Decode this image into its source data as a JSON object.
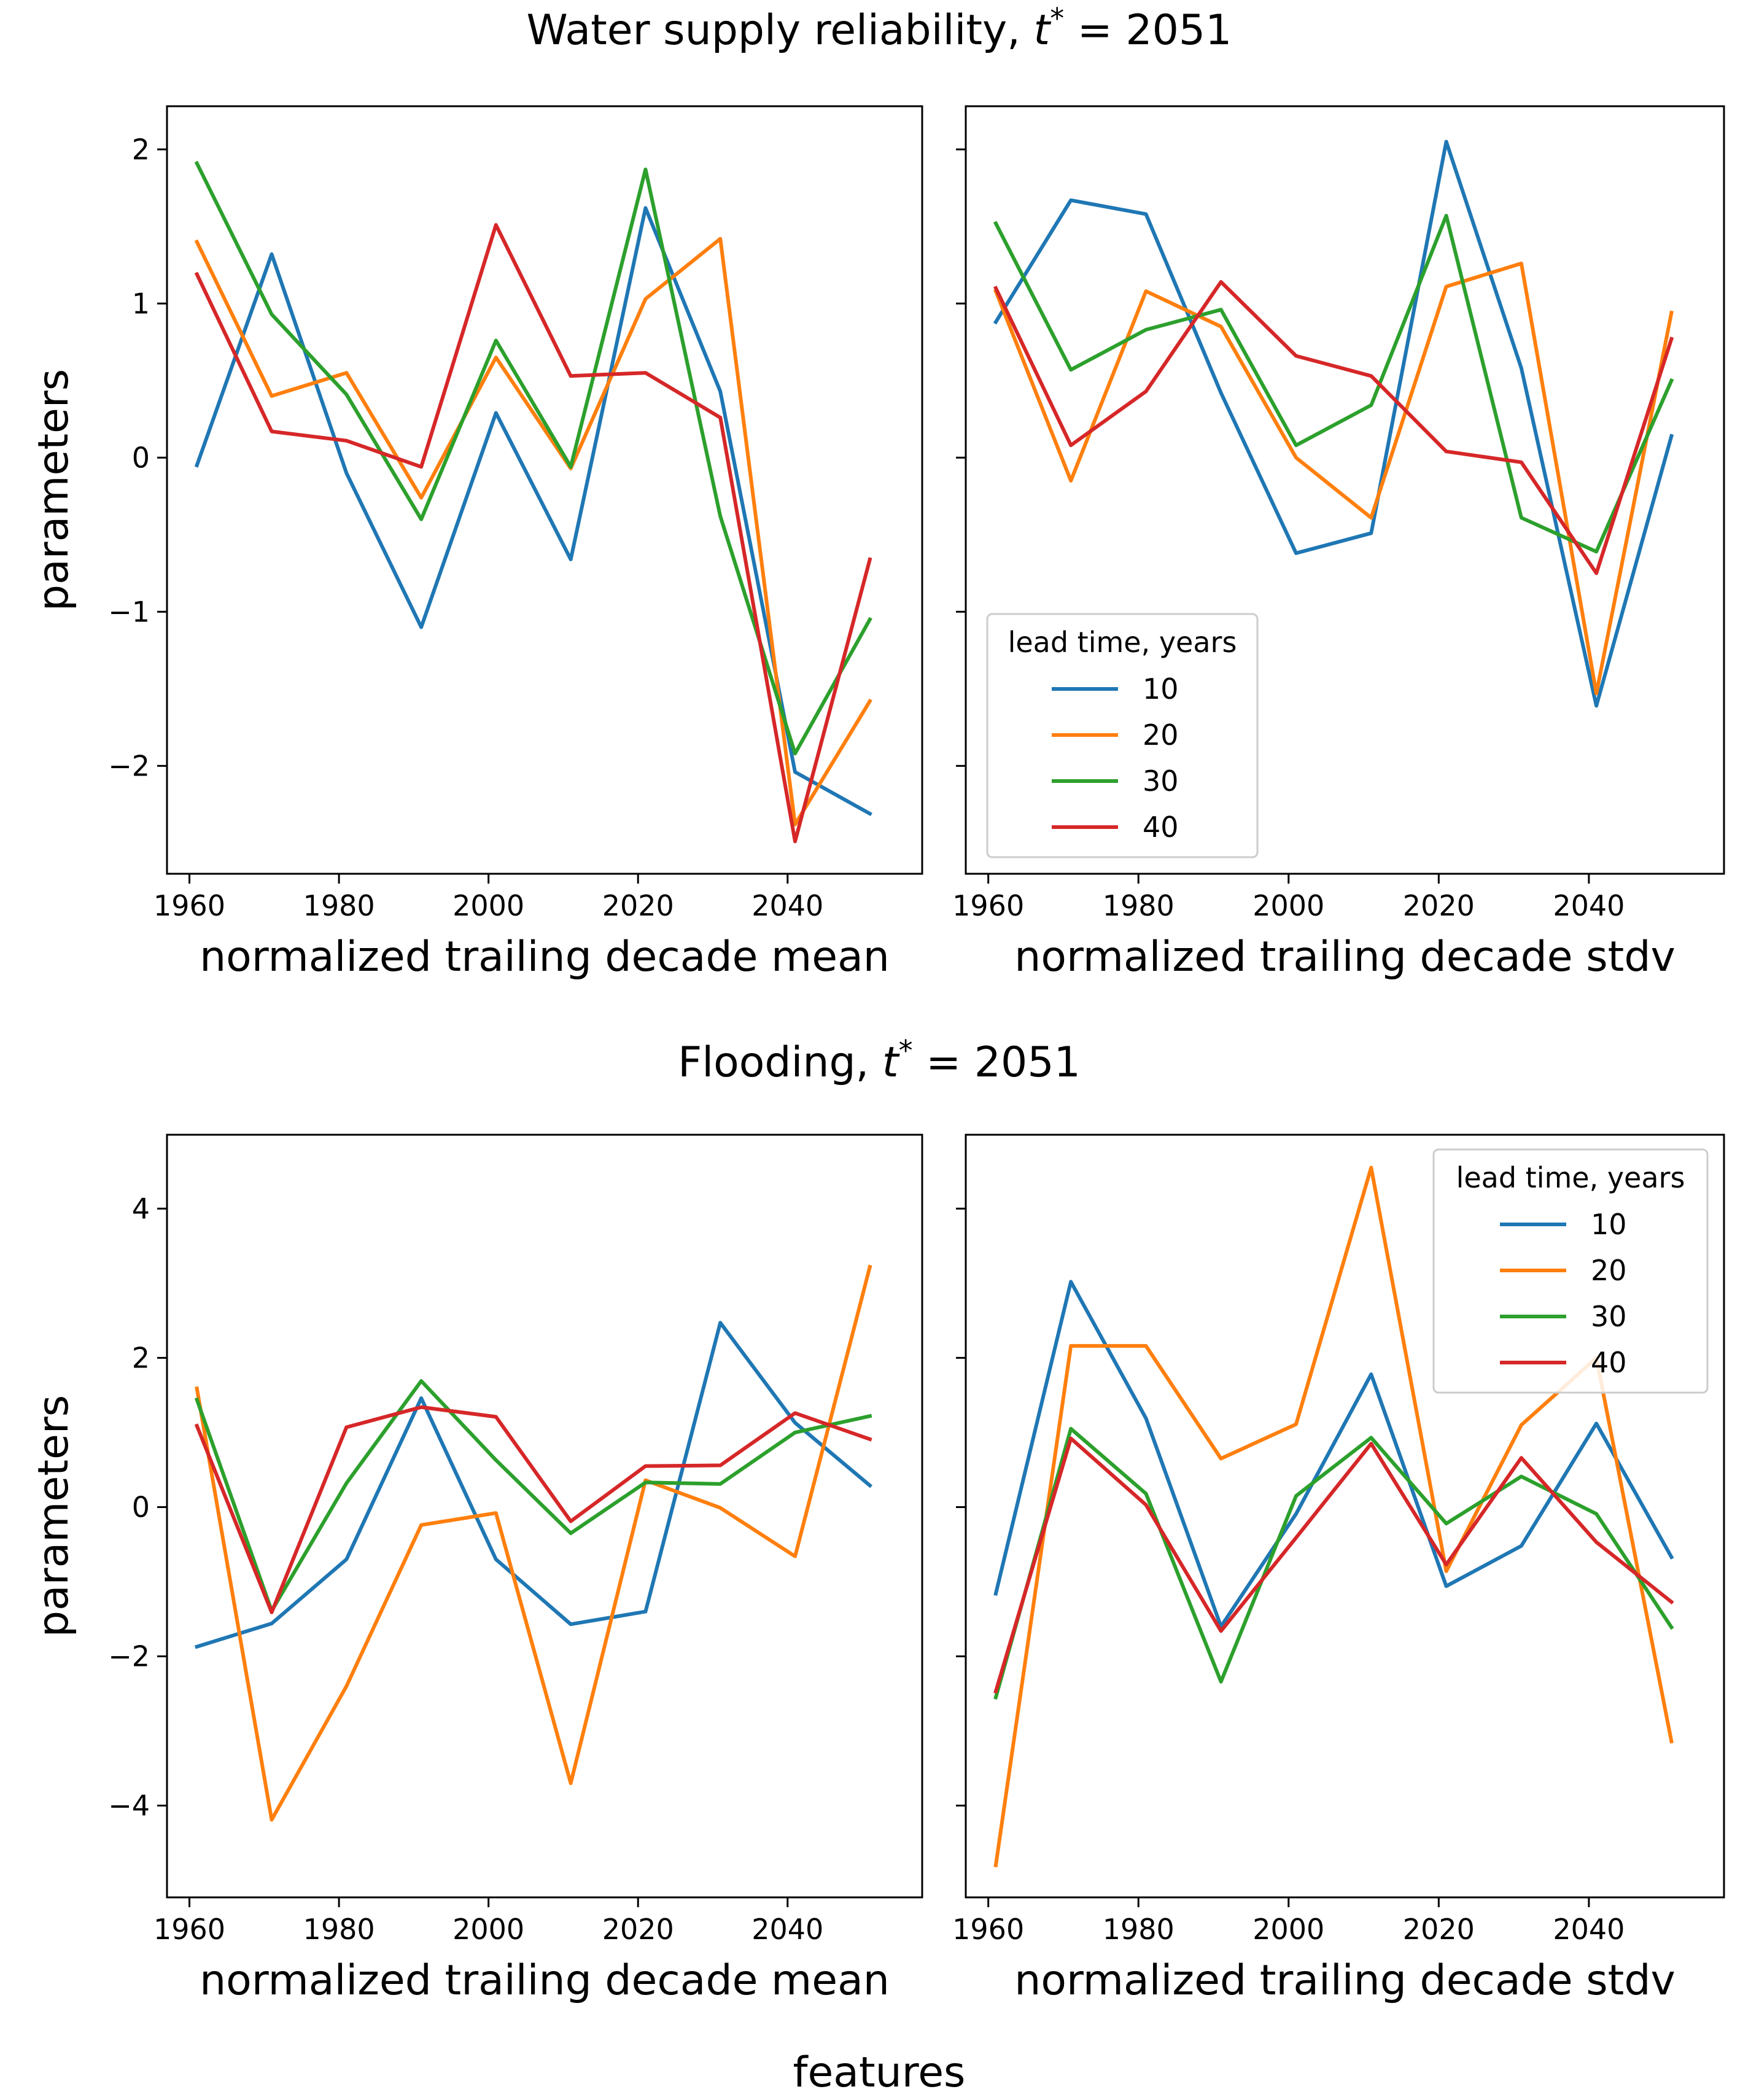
{
  "figure": {
    "suptitles": [
      "Water supply reliability, ",
      "Flooding, "
    ],
    "tstar_label": "t",
    "tstar_sup": "*",
    "tstar_value": " = 2051",
    "xlabel_bottom": "features"
  },
  "legend": {
    "title": "lead time, years",
    "entries": [
      "10",
      "20",
      "30",
      "40"
    ]
  },
  "chart_data": [
    {
      "type": "line",
      "panel": "water-mean",
      "xlabel": "normalized trailing decade mean",
      "ylabel": "parameters",
      "x": [
        1961,
        1971,
        1981,
        1991,
        2001,
        2011,
        2021,
        2031,
        2041,
        2051
      ],
      "xlim": [
        1957,
        2058
      ],
      "ylim": [
        -2.7,
        2.28
      ],
      "xticks": [
        1960,
        1980,
        2000,
        2020,
        2040
      ],
      "yticks": [
        -2,
        -1,
        0,
        1,
        2
      ],
      "ytick_labels": [
        "−2",
        "−1",
        "0",
        "1",
        "2"
      ],
      "series": [
        {
          "name": "10",
          "color": "#1f77b4",
          "values": [
            -0.05,
            1.32,
            -0.1,
            -1.1,
            0.29,
            -0.66,
            1.62,
            0.43,
            -2.04,
            -2.31
          ]
        },
        {
          "name": "20",
          "color": "#ff7f0e",
          "values": [
            1.4,
            0.4,
            0.55,
            -0.26,
            0.65,
            -0.07,
            1.03,
            1.42,
            -2.38,
            -1.58
          ]
        },
        {
          "name": "30",
          "color": "#2ca02c",
          "values": [
            1.91,
            0.93,
            0.41,
            -0.4,
            0.76,
            -0.06,
            1.87,
            -0.38,
            -1.92,
            -1.05
          ]
        },
        {
          "name": "40",
          "color": "#d62728",
          "values": [
            1.19,
            0.17,
            0.11,
            -0.06,
            1.51,
            0.53,
            0.55,
            0.26,
            -2.49,
            -0.66
          ]
        }
      ],
      "legend": false
    },
    {
      "type": "line",
      "panel": "water-stdv",
      "xlabel": "normalized trailing decade stdv",
      "ylabel": "",
      "x": [
        1961,
        1971,
        1981,
        1991,
        2001,
        2011,
        2021,
        2031,
        2041,
        2051
      ],
      "xlim": [
        1957,
        2058
      ],
      "ylim": [
        -2.7,
        2.28
      ],
      "xticks": [
        1960,
        1980,
        2000,
        2020,
        2040
      ],
      "yticks": [
        -2,
        -1,
        0,
        1,
        2
      ],
      "ytick_labels": [],
      "series": [
        {
          "name": "10",
          "color": "#1f77b4",
          "values": [
            0.88,
            1.67,
            1.58,
            0.42,
            -0.62,
            -0.49,
            2.05,
            0.58,
            -1.61,
            0.14
          ]
        },
        {
          "name": "20",
          "color": "#ff7f0e",
          "values": [
            1.08,
            -0.15,
            1.08,
            0.85,
            0.0,
            -0.39,
            1.11,
            1.26,
            -1.53,
            0.94
          ]
        },
        {
          "name": "30",
          "color": "#2ca02c",
          "values": [
            1.52,
            0.57,
            0.83,
            0.96,
            0.08,
            0.34,
            1.57,
            -0.39,
            -0.61,
            0.5
          ]
        },
        {
          "name": "40",
          "color": "#d62728",
          "values": [
            1.1,
            0.08,
            0.43,
            1.14,
            0.66,
            0.53,
            0.04,
            -0.03,
            -0.75,
            0.77
          ]
        }
      ],
      "legend": "lower-left"
    },
    {
      "type": "line",
      "panel": "flood-mean",
      "xlabel": "normalized trailing decade mean",
      "ylabel": "parameters",
      "x": [
        1961,
        1971,
        1981,
        1991,
        2001,
        2011,
        2021,
        2031,
        2041,
        2051
      ],
      "xlim": [
        1957,
        2058
      ],
      "ylim": [
        -5.23,
        4.99
      ],
      "xticks": [
        1960,
        1980,
        2000,
        2020,
        2040
      ],
      "yticks": [
        -4,
        -2,
        0,
        2,
        4
      ],
      "ytick_labels": [
        "−4",
        "−2",
        "0",
        "2",
        "4"
      ],
      "series": [
        {
          "name": "10",
          "color": "#1f77b4",
          "values": [
            -1.87,
            -1.56,
            -0.7,
            1.46,
            -0.7,
            -1.57,
            -1.4,
            2.47,
            1.13,
            0.29
          ]
        },
        {
          "name": "20",
          "color": "#ff7f0e",
          "values": [
            1.59,
            -4.19,
            -2.4,
            -0.24,
            -0.08,
            -3.7,
            0.36,
            -0.01,
            -0.66,
            3.22
          ]
        },
        {
          "name": "30",
          "color": "#2ca02c",
          "values": [
            1.44,
            -1.39,
            0.32,
            1.69,
            0.63,
            -0.35,
            0.33,
            0.31,
            1.0,
            1.22
          ]
        },
        {
          "name": "40",
          "color": "#d62728",
          "values": [
            1.09,
            -1.41,
            1.07,
            1.34,
            1.21,
            -0.19,
            0.55,
            0.56,
            1.26,
            0.91
          ]
        }
      ],
      "legend": false
    },
    {
      "type": "line",
      "panel": "flood-stdv",
      "xlabel": "normalized trailing decade stdv",
      "ylabel": "",
      "x": [
        1961,
        1971,
        1981,
        1991,
        2001,
        2011,
        2021,
        2031,
        2041,
        2051
      ],
      "xlim": [
        1957,
        2058
      ],
      "ylim": [
        -5.23,
        4.99
      ],
      "xticks": [
        1960,
        1980,
        2000,
        2020,
        2040
      ],
      "yticks": [
        -4,
        -2,
        0,
        2,
        4
      ],
      "ytick_labels": [],
      "series": [
        {
          "name": "10",
          "color": "#1f77b4",
          "values": [
            -1.16,
            3.02,
            1.19,
            -1.6,
            -0.09,
            1.78,
            -1.06,
            -0.52,
            1.12,
            -0.67
          ]
        },
        {
          "name": "20",
          "color": "#ff7f0e",
          "values": [
            -4.8,
            2.16,
            2.16,
            0.65,
            1.11,
            4.55,
            -0.86,
            1.1,
            2.0,
            -3.14
          ]
        },
        {
          "name": "30",
          "color": "#2ca02c",
          "values": [
            -2.55,
            1.05,
            0.18,
            -2.34,
            0.15,
            0.93,
            -0.22,
            0.41,
            -0.09,
            -1.61
          ]
        },
        {
          "name": "40",
          "color": "#d62728",
          "values": [
            -2.47,
            0.92,
            0.03,
            -1.66,
            -0.41,
            0.85,
            -0.77,
            0.66,
            -0.47,
            -1.27
          ]
        }
      ],
      "legend": "upper-right"
    }
  ]
}
